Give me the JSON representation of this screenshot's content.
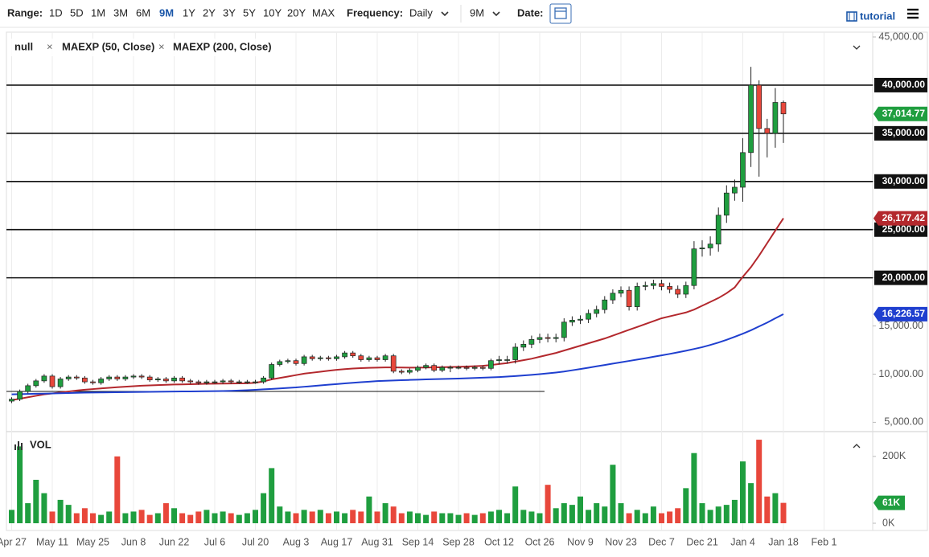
{
  "toolbar": {
    "range_label": "Range:",
    "ranges": [
      "1D",
      "5D",
      "1M",
      "3M",
      "6M",
      "9M",
      "1Y",
      "2Y",
      "3Y",
      "5Y",
      "10Y",
      "20Y",
      "MAX"
    ],
    "active_range": 5,
    "frequency_label": "Frequency:",
    "frequency": "Daily",
    "period": "9M",
    "date_label": "Date:",
    "tutorial": "tutorial"
  },
  "chart_data": [
    {
      "type": "candlestick",
      "legend_label": "null",
      "open": [
        7200,
        7400,
        8200,
        8800,
        9300,
        9800,
        8700,
        9500,
        9700,
        9600,
        9200,
        9100,
        9500,
        9700,
        9500,
        9700,
        9800,
        9700,
        9400,
        9500,
        9300,
        9600,
        9300,
        9200,
        9100,
        9200,
        9200,
        9300,
        9200,
        9200,
        9200,
        9200,
        9600,
        11000,
        11300,
        11400,
        11100,
        11800,
        11600,
        11700,
        11600,
        11800,
        12200,
        11900,
        11500,
        11700,
        11500,
        11900,
        10300,
        10200,
        10400,
        10700,
        10900,
        10400,
        10700,
        10700,
        10700,
        10600,
        10700,
        10600,
        11400,
        11500,
        11500,
        12800,
        13100,
        13600,
        13800,
        13700,
        13800,
        15400,
        15600,
        15700,
        16300,
        16700,
        17700,
        18400,
        18700,
        17000,
        19100,
        19200,
        19400,
        19100,
        18800,
        18300,
        19200,
        23000,
        23100,
        23500,
        26500,
        28800,
        29400,
        33000,
        40000,
        35500,
        35000,
        38200
      ],
      "high": [
        7600,
        8400,
        9000,
        9500,
        10000,
        10000,
        9700,
        9900,
        9900,
        9800,
        9400,
        9700,
        9900,
        9900,
        9900,
        10000,
        10000,
        9900,
        9700,
        9700,
        9800,
        9800,
        9500,
        9400,
        9400,
        9400,
        9500,
        9500,
        9400,
        9400,
        9400,
        9800,
        11200,
        11500,
        11600,
        11600,
        12000,
        12000,
        11900,
        11900,
        12000,
        12400,
        12400,
        12100,
        11900,
        11900,
        12100,
        12100,
        10500,
        10600,
        10900,
        11100,
        11100,
        10900,
        10900,
        10900,
        10900,
        10900,
        10900,
        11600,
        11900,
        11900,
        13200,
        13500,
        14000,
        14200,
        14200,
        14200,
        15800,
        16000,
        16100,
        16700,
        17100,
        18100,
        18800,
        19100,
        19100,
        19500,
        19600,
        19800,
        19800,
        19500,
        19200,
        19600,
        23800,
        23900,
        24300,
        27300,
        29600,
        30200,
        34500,
        41900,
        40500,
        36500,
        39700,
        38400
      ],
      "low": [
        7000,
        7200,
        8000,
        8600,
        9100,
        8500,
        8500,
        9300,
        9400,
        9000,
        8900,
        8900,
        9300,
        9300,
        9300,
        9500,
        9500,
        9200,
        9200,
        9100,
        9100,
        9100,
        9000,
        8900,
        8900,
        9000,
        9000,
        9000,
        9000,
        9000,
        9000,
        9000,
        9400,
        10800,
        11100,
        10900,
        10900,
        11400,
        11400,
        11400,
        11400,
        11600,
        11700,
        11300,
        11300,
        11300,
        11300,
        10100,
        10000,
        10000,
        10200,
        10500,
        10200,
        10200,
        10200,
        10500,
        10400,
        10400,
        10400,
        10400,
        11000,
        11100,
        11100,
        12400,
        12700,
        13200,
        13300,
        13300,
        13400,
        15000,
        15200,
        15300,
        15900,
        16300,
        17300,
        18000,
        16600,
        16600,
        18700,
        18800,
        18700,
        18400,
        17900,
        17900,
        18800,
        22200,
        22300,
        22700,
        25700,
        28000,
        27900,
        31500,
        30500,
        32500,
        33500,
        34000
      ],
      "close": [
        7400,
        8200,
        8800,
        9300,
        9800,
        8700,
        9500,
        9700,
        9600,
        9200,
        9100,
        9500,
        9700,
        9500,
        9700,
        9800,
        9700,
        9400,
        9500,
        9300,
        9600,
        9300,
        9200,
        9100,
        9200,
        9200,
        9300,
        9200,
        9200,
        9200,
        9200,
        9600,
        11000,
        11300,
        11400,
        11100,
        11800,
        11600,
        11700,
        11600,
        11800,
        12200,
        11900,
        11500,
        11700,
        11500,
        11900,
        10300,
        10200,
        10400,
        10700,
        10900,
        10400,
        10700,
        10700,
        10700,
        10600,
        10700,
        10600,
        11400,
        11500,
        11500,
        12800,
        13100,
        13600,
        13800,
        13700,
        13800,
        15400,
        15600,
        15700,
        16300,
        16700,
        17700,
        18400,
        18700,
        17000,
        19100,
        19200,
        19400,
        19100,
        18800,
        18300,
        19200,
        23000,
        23100,
        23500,
        26500,
        28800,
        29400,
        33000,
        40000,
        35500,
        35000,
        38200,
        37014.77
      ],
      "close_label": "37,014.77",
      "up_color": "#1f9e3f",
      "down_color": "#e8473b",
      "ylim": [
        4200,
        45500
      ],
      "yticks": [
        {
          "value": 45000,
          "label": "45,000.00"
        },
        {
          "value": 40000,
          "label": "40,000.00"
        },
        {
          "value": 35000,
          "label": "35,000.00"
        },
        {
          "value": 30000,
          "label": "30,000.00"
        },
        {
          "value": 25000,
          "label": "25,000.00"
        },
        {
          "value": 20000,
          "label": "20,000.00"
        },
        {
          "value": 15000,
          "label": "15,000.00"
        },
        {
          "value": 10000,
          "label": "10,000.00"
        },
        {
          "value": 5000,
          "label": "5,000.00"
        }
      ],
      "hlines": [
        40000,
        35000,
        30000,
        25000,
        20000
      ],
      "trendline": {
        "value": 8200,
        "end": "Oct 26"
      },
      "series": [
        {
          "name": "MAEXP (50, Close)",
          "color": "#b3282d",
          "last_label": "26,177.42",
          "values": [
            7300,
            7450,
            7600,
            7750,
            7900,
            8000,
            8100,
            8200,
            8300,
            8380,
            8450,
            8520,
            8580,
            8640,
            8700,
            8750,
            8800,
            8830,
            8860,
            8890,
            8920,
            8940,
            8960,
            8980,
            9000,
            9010,
            9020,
            9030,
            9040,
            9050,
            9100,
            9250,
            9450,
            9600,
            9750,
            9900,
            10050,
            10150,
            10250,
            10350,
            10450,
            10520,
            10580,
            10620,
            10660,
            10680,
            10700,
            10700,
            10690,
            10680,
            10680,
            10690,
            10700,
            10720,
            10740,
            10760,
            10790,
            10820,
            10860,
            10950,
            11050,
            11150,
            11300,
            11450,
            11600,
            11800,
            12000,
            12200,
            12450,
            12700,
            12950,
            13200,
            13450,
            13700,
            14000,
            14300,
            14600,
            14900,
            15200,
            15500,
            15800,
            16000,
            16200,
            16400,
            16700,
            17100,
            17500,
            17900,
            18400,
            19000,
            20100,
            21100,
            22300,
            23600,
            24900,
            26177.42
          ]
        },
        {
          "name": "MAEXP (200, Close)",
          "color": "#1f3fcf",
          "last_label": "16,226.57",
          "values": [
            7900,
            7920,
            7940,
            7960,
            7980,
            8000,
            8020,
            8040,
            8060,
            8080,
            8090,
            8100,
            8110,
            8120,
            8130,
            8140,
            8150,
            8160,
            8170,
            8180,
            8190,
            8200,
            8210,
            8220,
            8230,
            8240,
            8250,
            8270,
            8300,
            8330,
            8370,
            8420,
            8470,
            8520,
            8570,
            8620,
            8690,
            8760,
            8830,
            8900,
            8970,
            9040,
            9100,
            9160,
            9220,
            9280,
            9310,
            9340,
            9370,
            9400,
            9430,
            9460,
            9480,
            9500,
            9520,
            9540,
            9570,
            9600,
            9630,
            9660,
            9700,
            9750,
            9800,
            9860,
            9930,
            10000,
            10080,
            10170,
            10270,
            10400,
            10530,
            10670,
            10810,
            10950,
            11090,
            11230,
            11370,
            11510,
            11650,
            11800,
            11950,
            12100,
            12260,
            12430,
            12610,
            12800,
            13030,
            13280,
            13560,
            13870,
            14200,
            14550,
            14950,
            15350,
            15800,
            16226.57
          ]
        }
      ]
    },
    {
      "type": "bar",
      "title": "VOL",
      "categories": [
        "Apr 27",
        null,
        null,
        null,
        null,
        "May 11",
        null,
        null,
        null,
        null,
        "May 25",
        null,
        null,
        null,
        null,
        "Jun 8",
        null,
        null,
        null,
        null,
        "Jun 22",
        null,
        null,
        null,
        null,
        "Jul 6",
        null,
        null,
        null,
        null,
        "Jul 20",
        null,
        null,
        null,
        null,
        "Aug 3",
        null,
        null,
        null,
        null,
        "Aug 17",
        null,
        null,
        null,
        null,
        "Aug 31",
        null,
        null,
        null,
        null,
        "Sep 14",
        null,
        null,
        null,
        null,
        "Sep 28",
        null,
        null,
        null,
        null,
        "Oct 12",
        null,
        null,
        null,
        null,
        "Oct 26",
        null,
        null,
        null,
        null,
        "Nov 9",
        null,
        null,
        null,
        null,
        "Nov 23",
        null,
        null,
        null,
        null,
        "Dec 7",
        null,
        null,
        null,
        null,
        "Dec 21",
        null,
        null,
        null,
        null,
        "Jan 4",
        null,
        null,
        null,
        null,
        "Jan 18",
        null,
        null,
        null,
        null,
        "Feb 1"
      ],
      "values": [
        40000,
        230000,
        60000,
        130000,
        90000,
        35000,
        70000,
        55000,
        30000,
        45000,
        30000,
        25000,
        35000,
        200000,
        30000,
        35000,
        40000,
        25000,
        30000,
        60000,
        45000,
        30000,
        25000,
        35000,
        40000,
        30000,
        35000,
        30000,
        25000,
        30000,
        40000,
        90000,
        165000,
        50000,
        35000,
        30000,
        40000,
        35000,
        40000,
        30000,
        35000,
        30000,
        40000,
        35000,
        80000,
        35000,
        60000,
        50000,
        30000,
        35000,
        30000,
        25000,
        35000,
        30000,
        30000,
        25000,
        30000,
        25000,
        30000,
        35000,
        40000,
        30000,
        110000,
        40000,
        35000,
        30000,
        115000,
        45000,
        60000,
        55000,
        80000,
        40000,
        60000,
        50000,
        175000,
        60000,
        30000,
        40000,
        30000,
        50000,
        30000,
        35000,
        45000,
        105000,
        210000,
        60000,
        40000,
        50000,
        55000,
        70000,
        185000,
        120000,
        250000,
        80000,
        90000,
        61000,
        null,
        null,
        null,
        null,
        null
      ],
      "last_label": "61K",
      "ylim": [
        0,
        267000
      ],
      "yticks": [
        {
          "value": 0,
          "label": "0K"
        },
        {
          "value": 200000,
          "label": "200K"
        }
      ]
    }
  ]
}
